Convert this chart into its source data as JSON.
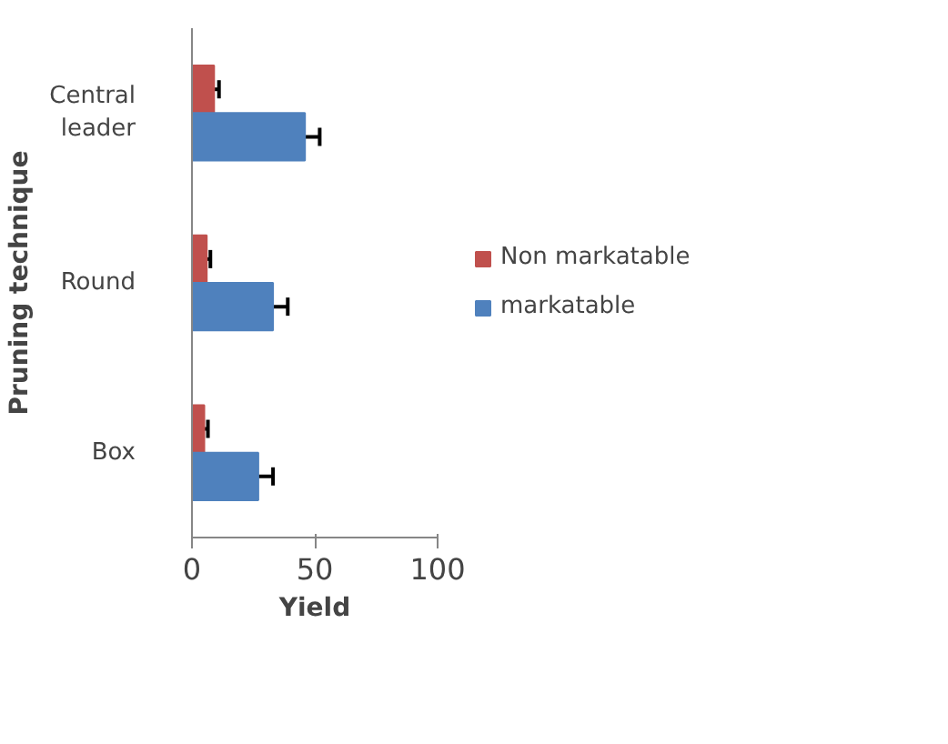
{
  "chart_data": {
    "type": "bar",
    "orientation": "horizontal",
    "xlabel": "Yield",
    "ylabel": "Pruning technique",
    "categories": [
      "Central leader",
      "Round",
      "Box"
    ],
    "series": [
      {
        "name": "Non markatable",
        "color": "#c0504d",
        "values": [
          9,
          6,
          5
        ],
        "errors": [
          2,
          1.5,
          1.5
        ]
      },
      {
        "name": "markatable",
        "color": "#4f81bd",
        "values": [
          46,
          33,
          27
        ],
        "errors": [
          6,
          6,
          6
        ]
      }
    ],
    "xlim": [
      0,
      100
    ],
    "xticks": [
      0,
      50,
      100
    ],
    "grid": false,
    "legend": "right"
  }
}
